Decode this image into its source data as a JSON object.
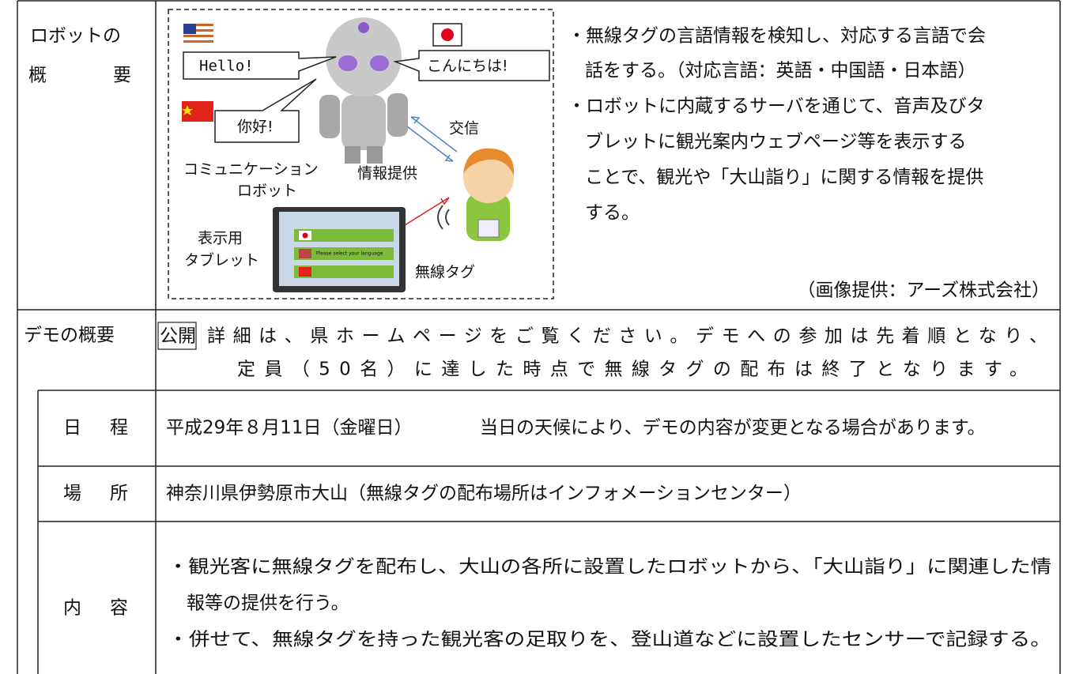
{
  "overview": {
    "label_line1": "ロボットの",
    "label_line2": "概　　要",
    "diagram": {
      "speech_en": "Hello!",
      "speech_ja": "こんにちは!",
      "speech_zh": "你好!",
      "exchange": "交信",
      "robot_label_line1": "コミュニケーション",
      "robot_label_line2": "ロボット",
      "info": "情報提供",
      "tablet_label_line1": "表示用",
      "tablet_label_line2": "タブレット",
      "tag_label": "無線タグ",
      "tablet_text": "Please select your language"
    },
    "bullets": [
      [
        "・無線タグの言語情報を検知し、対応する言語で会",
        "話をする。（対応言語：英語・中国語・日本語）"
      ],
      [
        "・ロボットに内蔵するサーバを通じて、音声及びタ",
        "ブレットに観光案内ウェブページ等を表示する",
        "ことで、観光や「大山詣り」に関する情報を提供",
        "する。"
      ]
    ],
    "credit": "（画像提供：アーズ株式会社）"
  },
  "demo": {
    "label": "デモの概要",
    "badge": "公開",
    "text": [
      "詳細は、県ホームページをご覧ください。デモへの参加は先着順となり、",
      "定員（50名）に達した時点で無線タグの配布は終了となります。"
    ],
    "rows": [
      {
        "label": "日　程",
        "text": "平成29年８月11日（金曜日）",
        "note": "当日の天候により、デモの内容が変更となる場合があります。"
      },
      {
        "label": "場　所",
        "text": "神奈川県伊勢原市大山（無線タグの配布場所はインフォメーションセンター）"
      },
      {
        "label": "内　容",
        "lines": [
          "・観光客に無線タグを配布し、大山の各所に設置したロボットから、「大山詣り」に関連した情",
          "報等の提供を行う。",
          "・併せて、無線タグを持った観光客の足取りを、登山道などに設置したセンサーで記録する。"
        ]
      }
    ]
  }
}
